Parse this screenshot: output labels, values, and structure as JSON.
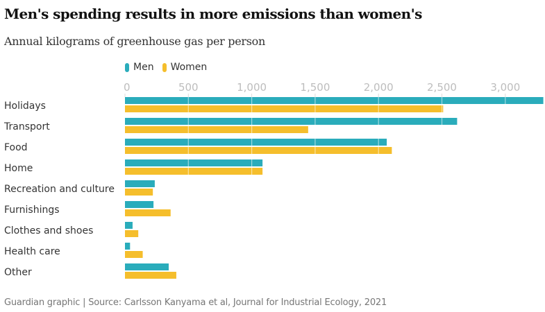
{
  "chart_data": {
    "type": "bar",
    "orientation": "horizontal",
    "title": "Men's spending results in more emissions than women's",
    "subtitle": "Annual kilograms of greenhouse gas per person",
    "xlabel": "",
    "ylabel": "",
    "xlim": [
      0,
      3300
    ],
    "ticks": [
      0,
      500,
      1000,
      1500,
      2000,
      2500,
      3000
    ],
    "tick_labels": [
      "0",
      "500",
      "1,000",
      "1,500",
      "2,000",
      "2,500",
      "3,000"
    ],
    "grid": true,
    "legend_position": "top-left",
    "categories": [
      "Holidays",
      "Transport",
      "Food",
      "Home",
      "Recreation and culture",
      "Furnishings",
      "Clothes and shoes",
      "Health care",
      "Other"
    ],
    "series": [
      {
        "name": "Men",
        "color": "#2aacbb",
        "values": [
          3300,
          2620,
          2065,
          1085,
          235,
          225,
          60,
          40,
          345
        ]
      },
      {
        "name": "Women",
        "color": "#f5be2c",
        "values": [
          2510,
          1445,
          2105,
          1085,
          220,
          360,
          105,
          140,
          405
        ]
      }
    ],
    "source": "Guardian graphic | Source: Carlsson Kanyama et al, Journal for Industrial Ecology, 2021"
  }
}
